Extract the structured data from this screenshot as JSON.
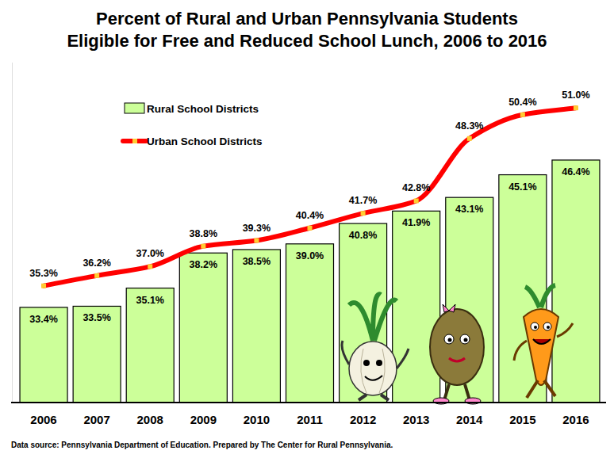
{
  "chart_data": {
    "type": "bar",
    "title": "Percent of Rural and Urban Pennsylvania Students\nEligible for Free and Reduced School Lunch, 2006 to 2016",
    "annotations": [
      "Data source: Pennsylvania Department of Education. Prepared by The Center for Rural Pennsylvania."
    ],
    "categories": [
      "2006",
      "2007",
      "2008",
      "2009",
      "2010",
      "2011",
      "2012",
      "2013",
      "2014",
      "2015",
      "2016"
    ],
    "series": [
      {
        "name": "Rural School Districts",
        "type": "bar",
        "color": "#ccff99",
        "values": [
          33.4,
          33.5,
          35.1,
          38.2,
          38.5,
          39.0,
          40.8,
          41.9,
          43.1,
          45.1,
          46.4
        ],
        "value_labels": [
          "33.4%",
          "33.5%",
          "35.1%",
          "38.2%",
          "38.5%",
          "39.0%",
          "40.8%",
          "41.9%",
          "43.1%",
          "45.1%",
          "46.4%"
        ]
      },
      {
        "name": "Urban School Districts",
        "type": "line",
        "color": "#ff0000",
        "marker": "square",
        "values": [
          35.3,
          36.2,
          37.0,
          38.8,
          39.3,
          40.4,
          41.7,
          42.8,
          48.3,
          50.4,
          51.0
        ],
        "value_labels": [
          "35.3%",
          "36.2%",
          "37.0%",
          "38.8%",
          "39.3%",
          "40.4%",
          "41.7%",
          "42.8%",
          "48.3%",
          "50.4%",
          "51.0%"
        ]
      }
    ],
    "ylim": [
      25,
      55
    ],
    "yticks": [],
    "tick_labels": "x",
    "grid": false,
    "legend": "top-left",
    "data_labels": true
  }
}
